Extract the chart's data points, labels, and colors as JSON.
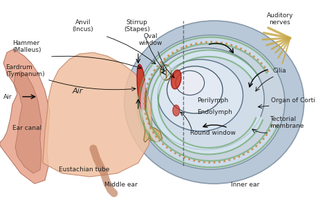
{
  "bg_color": "#f5f0e8",
  "title": "",
  "labels": {
    "hammer": "Hammer\n(Malleus)",
    "anvil": "Anvil\n(Incus)",
    "stirrup": "Stirrup\n(Stapes)",
    "oval_window": "Oval\nwindow",
    "eardrum": "Eardrum\n(Tympanum)",
    "air_arrow": "Air",
    "air_middle": "Air",
    "ear_canal": "Ear canal",
    "eustachian": "Eustachian tube",
    "middle_ear": "Middle ear",
    "inner_ear": "Inner ear",
    "perilymph": "Perilymph",
    "endolymph": "Endolymph",
    "round_window": "Round window",
    "cilia": "Cilia",
    "organ_corti": "Organ of Corti",
    "tectorial": "Tectorial\nmembrane",
    "auditory": "Auditory\nnerves"
  },
  "colors": {
    "cochlea_bg": "#b8c8d8",
    "cochlea_outer": "#a0b4c8",
    "perilymph_fill": "#c8d8e8",
    "endolymph_fill": "#d0e0f0",
    "green_membrane": "#6aaa6a",
    "orange_dots": "#cc8844",
    "red_oval": "#cc3322",
    "ear_body": "#e8a890",
    "ear_body2": "#d4907a",
    "middle_ear_bg": "#f0b090",
    "eustachian_color": "#d4907a",
    "auditory_nerve": "#c8a84a",
    "text_color": "#222222",
    "dashed_line": "#555555"
  }
}
